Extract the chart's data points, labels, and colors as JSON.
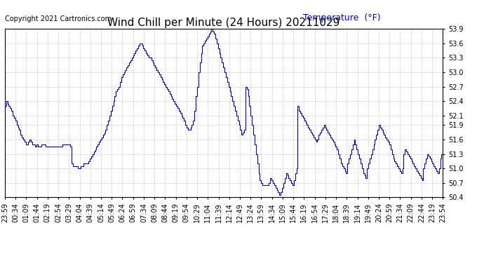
{
  "title": "Wind Chill per Minute (24 Hours) 20211029",
  "copyright": "Copyright 2021 Cartronics.com",
  "legend_label": "Temperature  (°F)",
  "ylim": [
    50.4,
    53.9
  ],
  "yticks": [
    50.4,
    50.7,
    51.0,
    51.3,
    51.6,
    51.9,
    52.1,
    52.4,
    52.7,
    53.0,
    53.3,
    53.6,
    53.9
  ],
  "line_color": "#0000cc",
  "bg_color": "#ffffff",
  "grid_color": "#aaaaaa",
  "title_fontsize": 11,
  "copyright_fontsize": 7,
  "legend_fontsize": 9,
  "tick_fontsize": 7,
  "x_labels": [
    "23:59",
    "00:34",
    "01:09",
    "01:44",
    "02:19",
    "02:54",
    "03:29",
    "04:04",
    "04:39",
    "05:14",
    "05:49",
    "06:24",
    "06:59",
    "07:34",
    "08:09",
    "08:44",
    "09:19",
    "09:54",
    "10:29",
    "11:04",
    "11:39",
    "12:14",
    "12:49",
    "13:24",
    "13:59",
    "14:34",
    "15:09",
    "15:44",
    "16:19",
    "16:54",
    "17:29",
    "18:04",
    "18:39",
    "19:14",
    "19:49",
    "20:24",
    "20:59",
    "21:34",
    "22:09",
    "22:44",
    "23:19",
    "23:54"
  ],
  "wind_chill": [
    52.3,
    52.4,
    52.35,
    52.3,
    52.25,
    52.2,
    52.1,
    52.05,
    52.0,
    51.9,
    51.85,
    51.8,
    51.7,
    51.65,
    51.6,
    51.55,
    51.5,
    51.5,
    51.55,
    51.6,
    51.55,
    51.5,
    51.5,
    51.45,
    51.5,
    51.45,
    51.45,
    51.45,
    51.5,
    51.5,
    51.5,
    51.45,
    51.45,
    51.45,
    51.45,
    51.45,
    51.45,
    51.45,
    51.45,
    51.45,
    51.45,
    51.45,
    51.45,
    51.45,
    51.5,
    51.5,
    51.5,
    51.5,
    51.5,
    51.5,
    51.45,
    51.1,
    51.05,
    51.05,
    51.05,
    51.05,
    51.0,
    51.0,
    51.05,
    51.05,
    51.1,
    51.1,
    51.1,
    51.1,
    51.15,
    51.2,
    51.25,
    51.3,
    51.35,
    51.4,
    51.45,
    51.5,
    51.55,
    51.6,
    51.65,
    51.7,
    51.75,
    51.8,
    51.9,
    52.0,
    52.1,
    52.2,
    52.3,
    52.4,
    52.5,
    52.6,
    52.65,
    52.7,
    52.8,
    52.9,
    52.95,
    53.0,
    53.05,
    53.1,
    53.15,
    53.2,
    53.25,
    53.3,
    53.35,
    53.4,
    53.45,
    53.5,
    53.55,
    53.6,
    53.6,
    53.55,
    53.5,
    53.45,
    53.4,
    53.35,
    53.3,
    53.3,
    53.25,
    53.2,
    53.15,
    53.1,
    53.05,
    53.0,
    52.95,
    52.9,
    52.85,
    52.8,
    52.75,
    52.7,
    52.65,
    52.6,
    52.55,
    52.5,
    52.45,
    52.4,
    52.35,
    52.3,
    52.25,
    52.2,
    52.15,
    52.1,
    52.05,
    52.0,
    51.9,
    51.85,
    51.8,
    51.8,
    51.85,
    51.9,
    52.0,
    52.2,
    52.5,
    52.7,
    53.0,
    53.2,
    53.4,
    53.55,
    53.6,
    53.65,
    53.7,
    53.75,
    53.8,
    53.85,
    53.9,
    53.85,
    53.8,
    53.7,
    53.6,
    53.5,
    53.4,
    53.3,
    53.2,
    53.1,
    53.0,
    52.9,
    52.8,
    52.7,
    52.6,
    52.5,
    52.4,
    52.3,
    52.2,
    52.1,
    52.0,
    51.9,
    51.8,
    51.7,
    51.75,
    51.8,
    52.7,
    52.65,
    52.5,
    52.3,
    52.1,
    51.9,
    51.7,
    51.5,
    51.3,
    51.1,
    50.9,
    50.75,
    50.7,
    50.65,
    50.65,
    50.65,
    50.65,
    50.65,
    50.7,
    50.8,
    50.75,
    50.7,
    50.65,
    50.6,
    50.55,
    50.5,
    50.45,
    50.5,
    50.6,
    50.7,
    50.8,
    50.9,
    50.85,
    50.8,
    50.75,
    50.7,
    50.65,
    50.75,
    50.9,
    51.0,
    52.3,
    52.2,
    52.15,
    52.1,
    52.05,
    52.0,
    51.95,
    51.9,
    51.85,
    51.8,
    51.75,
    51.7,
    51.65,
    51.6,
    51.55,
    51.6,
    51.7,
    51.75,
    51.8,
    51.85,
    51.9,
    51.85,
    51.8,
    51.75,
    51.7,
    51.65,
    51.6,
    51.55,
    51.5,
    51.45,
    51.4,
    51.3,
    51.2,
    51.1,
    51.05,
    51.0,
    50.95,
    50.9,
    51.1,
    51.2,
    51.3,
    51.4,
    51.5,
    51.6,
    51.5,
    51.4,
    51.3,
    51.2,
    51.1,
    51.0,
    50.9,
    50.85,
    50.8,
    51.0,
    51.1,
    51.2,
    51.3,
    51.4,
    51.5,
    51.6,
    51.7,
    51.8,
    51.9,
    51.85,
    51.8,
    51.75,
    51.7,
    51.65,
    51.6,
    51.55,
    51.5,
    51.4,
    51.3,
    51.2,
    51.15,
    51.1,
    51.05,
    51.0,
    50.95,
    50.9,
    51.0,
    51.3,
    51.4,
    51.35,
    51.3,
    51.25,
    51.2,
    51.15,
    51.1,
    51.05,
    51.0,
    50.95,
    50.9,
    50.85,
    50.8,
    50.75,
    51.0,
    51.1,
    51.2,
    51.3,
    51.25,
    51.2,
    51.15,
    51.1,
    51.05,
    51.0,
    50.95,
    50.9,
    51.0,
    51.2,
    51.3,
    51.35
  ]
}
